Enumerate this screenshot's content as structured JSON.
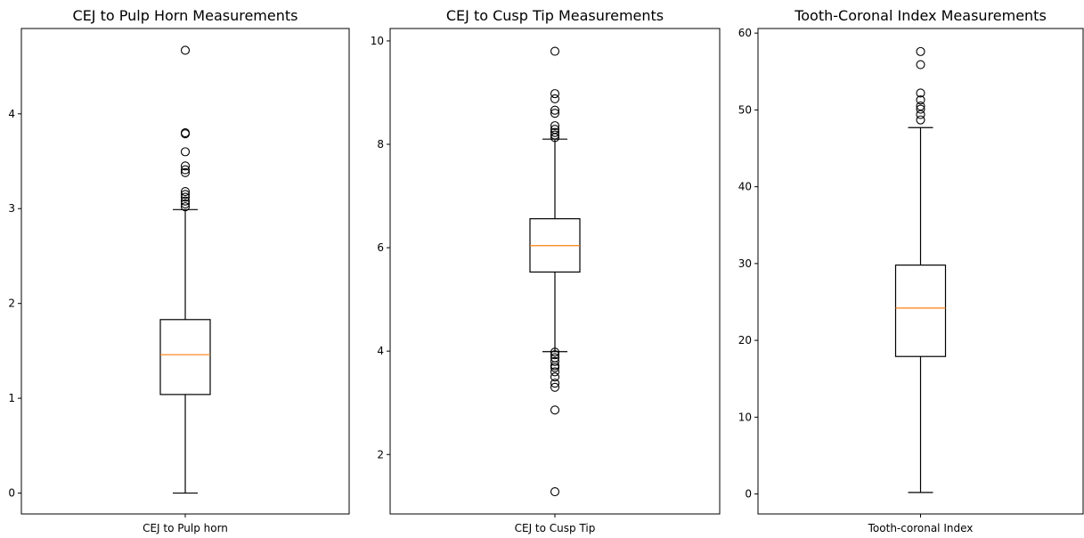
{
  "chart_data": [
    {
      "type": "boxplot",
      "title": "CEJ to Pulp Horn Measurements",
      "category": "CEJ to Pulp horn",
      "ylim": [
        -0.22,
        4.9
      ],
      "yticks": [
        0,
        1,
        2,
        3,
        4
      ],
      "whisker_low": 0.0,
      "q1": 1.04,
      "median": 1.46,
      "q3": 1.83,
      "whisker_high": 2.99,
      "outliers": [
        3.02,
        3.05,
        3.08,
        3.12,
        3.15,
        3.18,
        3.38,
        3.41,
        3.45,
        3.6,
        3.79,
        3.8,
        4.67
      ],
      "box_color": "#000000",
      "median_color": "#ff7f0e"
    },
    {
      "type": "boxplot",
      "title": "CEJ to Cusp Tip Measurements",
      "category": "CEJ to Cusp Tip",
      "ylim": [
        0.85,
        10.24
      ],
      "yticks": [
        2,
        4,
        6,
        8,
        10
      ],
      "whisker_low": 3.99,
      "q1": 5.53,
      "median": 6.04,
      "q3": 6.56,
      "whisker_high": 8.1,
      "outliers": [
        1.28,
        2.86,
        3.3,
        3.38,
        3.5,
        3.6,
        3.68,
        3.72,
        3.8,
        3.87,
        3.93,
        3.98,
        8.13,
        8.18,
        8.23,
        8.29,
        8.36,
        8.6,
        8.66,
        8.88,
        8.98,
        9.8
      ],
      "box_color": "#000000",
      "median_color": "#ff7f0e"
    },
    {
      "type": "boxplot",
      "title": "Tooth-Coronal Index Measurements",
      "category": "Tooth-coronal Index",
      "ylim": [
        -2.6,
        60.6
      ],
      "yticks": [
        0,
        10,
        20,
        30,
        40,
        50,
        60
      ],
      "whisker_low": 0.2,
      "q1": 17.9,
      "median": 24.2,
      "q3": 29.8,
      "whisker_high": 47.7,
      "outliers": [
        48.7,
        49.4,
        50.1,
        50.5,
        51.3,
        52.2,
        55.9,
        57.6
      ],
      "box_color": "#000000",
      "median_color": "#ff7f0e"
    }
  ]
}
